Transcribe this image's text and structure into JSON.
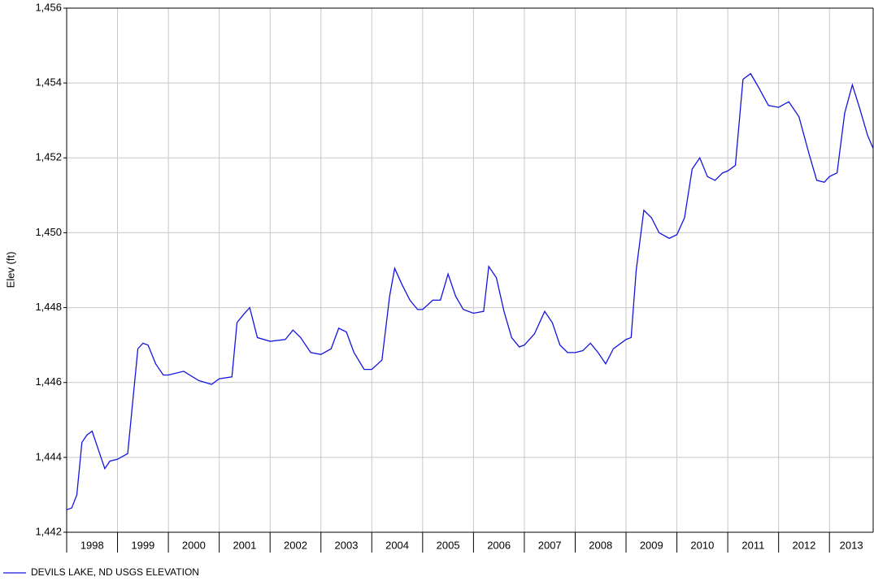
{
  "chart_data": {
    "type": "line",
    "ylabel": "Elev (ft)",
    "x": [
      1998.0,
      1998.1,
      1998.2,
      1998.3,
      1998.4,
      1998.5,
      1998.6,
      1998.75,
      1998.85,
      1999.0,
      1999.2,
      1999.3,
      1999.4,
      1999.5,
      1999.6,
      1999.75,
      1999.9,
      2000.0,
      2000.3,
      2000.6,
      2000.85,
      2001.0,
      2001.25,
      2001.35,
      2001.5,
      2001.6,
      2001.75,
      2002.0,
      2002.3,
      2002.45,
      2002.6,
      2002.8,
      2003.0,
      2003.2,
      2003.35,
      2003.5,
      2003.65,
      2003.85,
      2004.0,
      2004.2,
      2004.35,
      2004.45,
      2004.6,
      2004.75,
      2004.9,
      2005.0,
      2005.2,
      2005.35,
      2005.5,
      2005.65,
      2005.8,
      2006.0,
      2006.2,
      2006.3,
      2006.45,
      2006.6,
      2006.75,
      2006.9,
      2007.0,
      2007.2,
      2007.4,
      2007.55,
      2007.7,
      2007.85,
      2008.0,
      2008.15,
      2008.3,
      2008.45,
      2008.6,
      2008.75,
      2009.0,
      2009.1,
      2009.2,
      2009.35,
      2009.5,
      2009.65,
      2009.85,
      2010.0,
      2010.15,
      2010.3,
      2010.45,
      2010.6,
      2010.75,
      2010.9,
      2011.0,
      2011.15,
      2011.3,
      2011.45,
      2011.6,
      2011.8,
      2012.0,
      2012.2,
      2012.4,
      2012.6,
      2012.75,
      2012.9,
      2013.0,
      2013.15,
      2013.3,
      2013.45,
      2013.6,
      2013.75,
      2013.86
    ],
    "series": [
      {
        "name": "DEVILS LAKE, ND USGS ELEVATION",
        "color": "#1414e0",
        "values": [
          1442.6,
          1442.65,
          1443.0,
          1444.4,
          1444.6,
          1444.7,
          1444.3,
          1443.7,
          1443.9,
          1443.95,
          1444.1,
          1445.5,
          1446.9,
          1447.05,
          1447.0,
          1446.5,
          1446.2,
          1446.2,
          1446.3,
          1446.05,
          1445.95,
          1446.1,
          1446.15,
          1447.6,
          1447.85,
          1448.0,
          1447.2,
          1447.1,
          1447.15,
          1447.4,
          1447.2,
          1446.8,
          1446.75,
          1446.9,
          1447.45,
          1447.35,
          1446.8,
          1446.35,
          1446.35,
          1446.6,
          1448.3,
          1449.05,
          1448.6,
          1448.2,
          1447.95,
          1447.95,
          1448.2,
          1448.2,
          1448.9,
          1448.3,
          1447.95,
          1447.85,
          1447.9,
          1449.1,
          1448.8,
          1447.9,
          1447.2,
          1446.95,
          1447.0,
          1447.3,
          1447.9,
          1447.6,
          1447.0,
          1446.8,
          1446.8,
          1446.85,
          1447.05,
          1446.8,
          1446.5,
          1446.9,
          1447.15,
          1447.2,
          1449.0,
          1450.6,
          1450.4,
          1450.0,
          1449.85,
          1449.95,
          1450.4,
          1451.7,
          1452.0,
          1451.5,
          1451.4,
          1451.6,
          1451.65,
          1451.8,
          1454.1,
          1454.25,
          1453.9,
          1453.4,
          1453.35,
          1453.5,
          1453.1,
          1452.1,
          1451.4,
          1451.35,
          1451.5,
          1451.6,
          1453.2,
          1453.95,
          1453.3,
          1452.6,
          1452.25
        ]
      }
    ],
    "xlim": [
      1998,
      2013.86
    ],
    "xticks": [
      {
        "value": 1998,
        "label": "1998"
      },
      {
        "value": 1999,
        "label": "1999"
      },
      {
        "value": 2000,
        "label": "2000"
      },
      {
        "value": 2001,
        "label": "2001"
      },
      {
        "value": 2002,
        "label": "2002"
      },
      {
        "value": 2003,
        "label": "2003"
      },
      {
        "value": 2004,
        "label": "2004"
      },
      {
        "value": 2005,
        "label": "2005"
      },
      {
        "value": 2006,
        "label": "2006"
      },
      {
        "value": 2007,
        "label": "2007"
      },
      {
        "value": 2008,
        "label": "2008"
      },
      {
        "value": 2009,
        "label": "2009"
      },
      {
        "value": 2010,
        "label": "2010"
      },
      {
        "value": 2011,
        "label": "2011"
      },
      {
        "value": 2012,
        "label": "2012"
      },
      {
        "value": 2013,
        "label": "2013"
      }
    ],
    "ylim": [
      1442,
      1456
    ],
    "yticks": [
      {
        "value": 1442,
        "label": "1,442"
      },
      {
        "value": 1444,
        "label": "1,444"
      },
      {
        "value": 1446,
        "label": "1,446"
      },
      {
        "value": 1448,
        "label": "1,448"
      },
      {
        "value": 1450,
        "label": "1,450"
      },
      {
        "value": 1452,
        "label": "1,452"
      },
      {
        "value": 1454,
        "label": "1,454"
      },
      {
        "value": 1456,
        "label": "1,456"
      }
    ],
    "grid": true,
    "legend": "bottom-left"
  }
}
